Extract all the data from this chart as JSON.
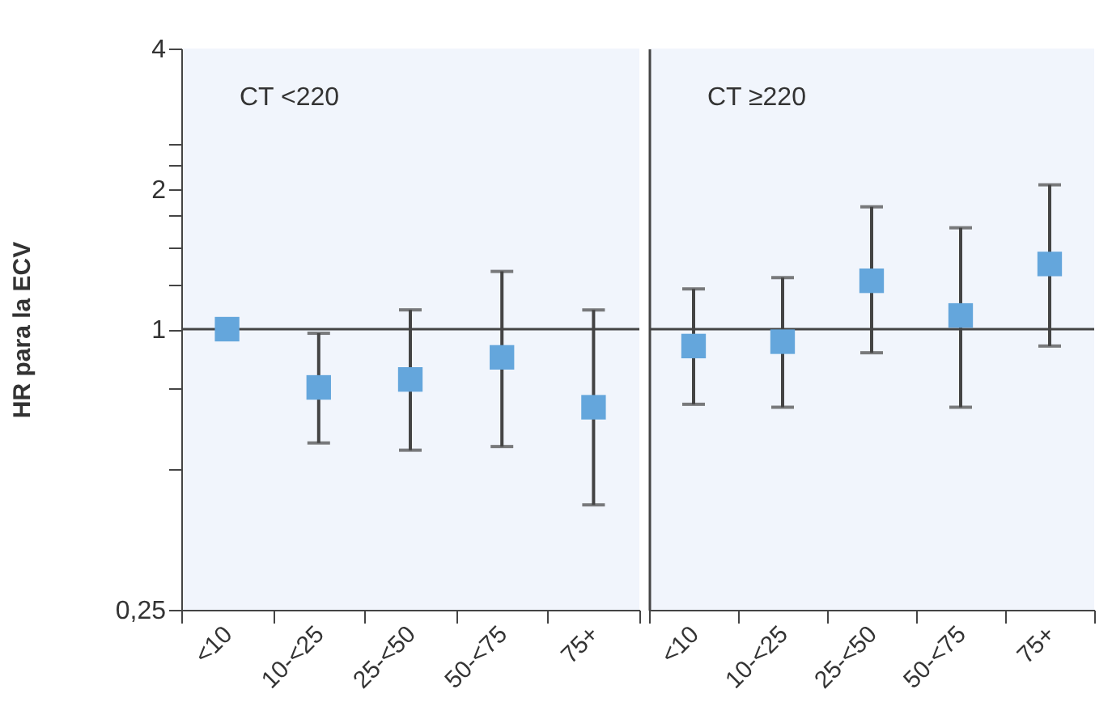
{
  "chart_data": [
    {
      "type": "scatter",
      "title": "CT <220",
      "ylabel": "HR para la ECV",
      "categories": [
        "<10",
        "10-<25",
        "25-<50",
        "50-<75",
        "75+"
      ],
      "series": [
        {
          "color": "#64a6dc",
          "values": [
            1.0,
            0.75,
            0.78,
            0.87,
            0.68
          ],
          "errors": [
            null,
            [
              0.57,
              0.98
            ],
            [
              0.55,
              1.1
            ],
            [
              0.56,
              1.33
            ],
            [
              0.42,
              1.1
            ]
          ]
        }
      ],
      "ylim": [
        0.25,
        4
      ],
      "log": true,
      "yticks": [
        {
          "value": 0.25,
          "label": "0,25"
        },
        {
          "value": 0.5,
          "label": null
        },
        {
          "value": 0.75,
          "label": null
        },
        1,
        {
          "value": 1.25,
          "label": null
        },
        {
          "value": 1.5,
          "label": null
        },
        {
          "value": 1.75,
          "label": null
        },
        2,
        {
          "value": 2.25,
          "label": null
        },
        {
          "value": 2.5,
          "label": null
        },
        4
      ],
      "ref_lines": [
        {
          "axis": "y",
          "value": 1,
          "label": null
        }
      ],
      "grid": false,
      "marker": "square"
    },
    {
      "type": "scatter",
      "title": "CT ≥220",
      "categories": [
        "<10",
        "10-<25",
        "25-<50",
        "50-<75",
        "75+"
      ],
      "series": [
        {
          "color": "#64a6dc",
          "values": [
            0.92,
            0.94,
            1.27,
            1.07,
            1.38
          ],
          "errors": [
            [
              0.69,
              1.22
            ],
            [
              0.68,
              1.29
            ],
            [
              0.89,
              1.83
            ],
            [
              0.68,
              1.65
            ],
            [
              0.92,
              2.04
            ]
          ]
        }
      ],
      "ylim": [
        0.25,
        4
      ],
      "log": true,
      "yticks": [
        0.25,
        1,
        2,
        4
      ],
      "tick_labels": "x",
      "ref_lines": [
        {
          "axis": "y",
          "value": 1,
          "label": null
        }
      ],
      "grid": false,
      "marker": "square"
    }
  ]
}
